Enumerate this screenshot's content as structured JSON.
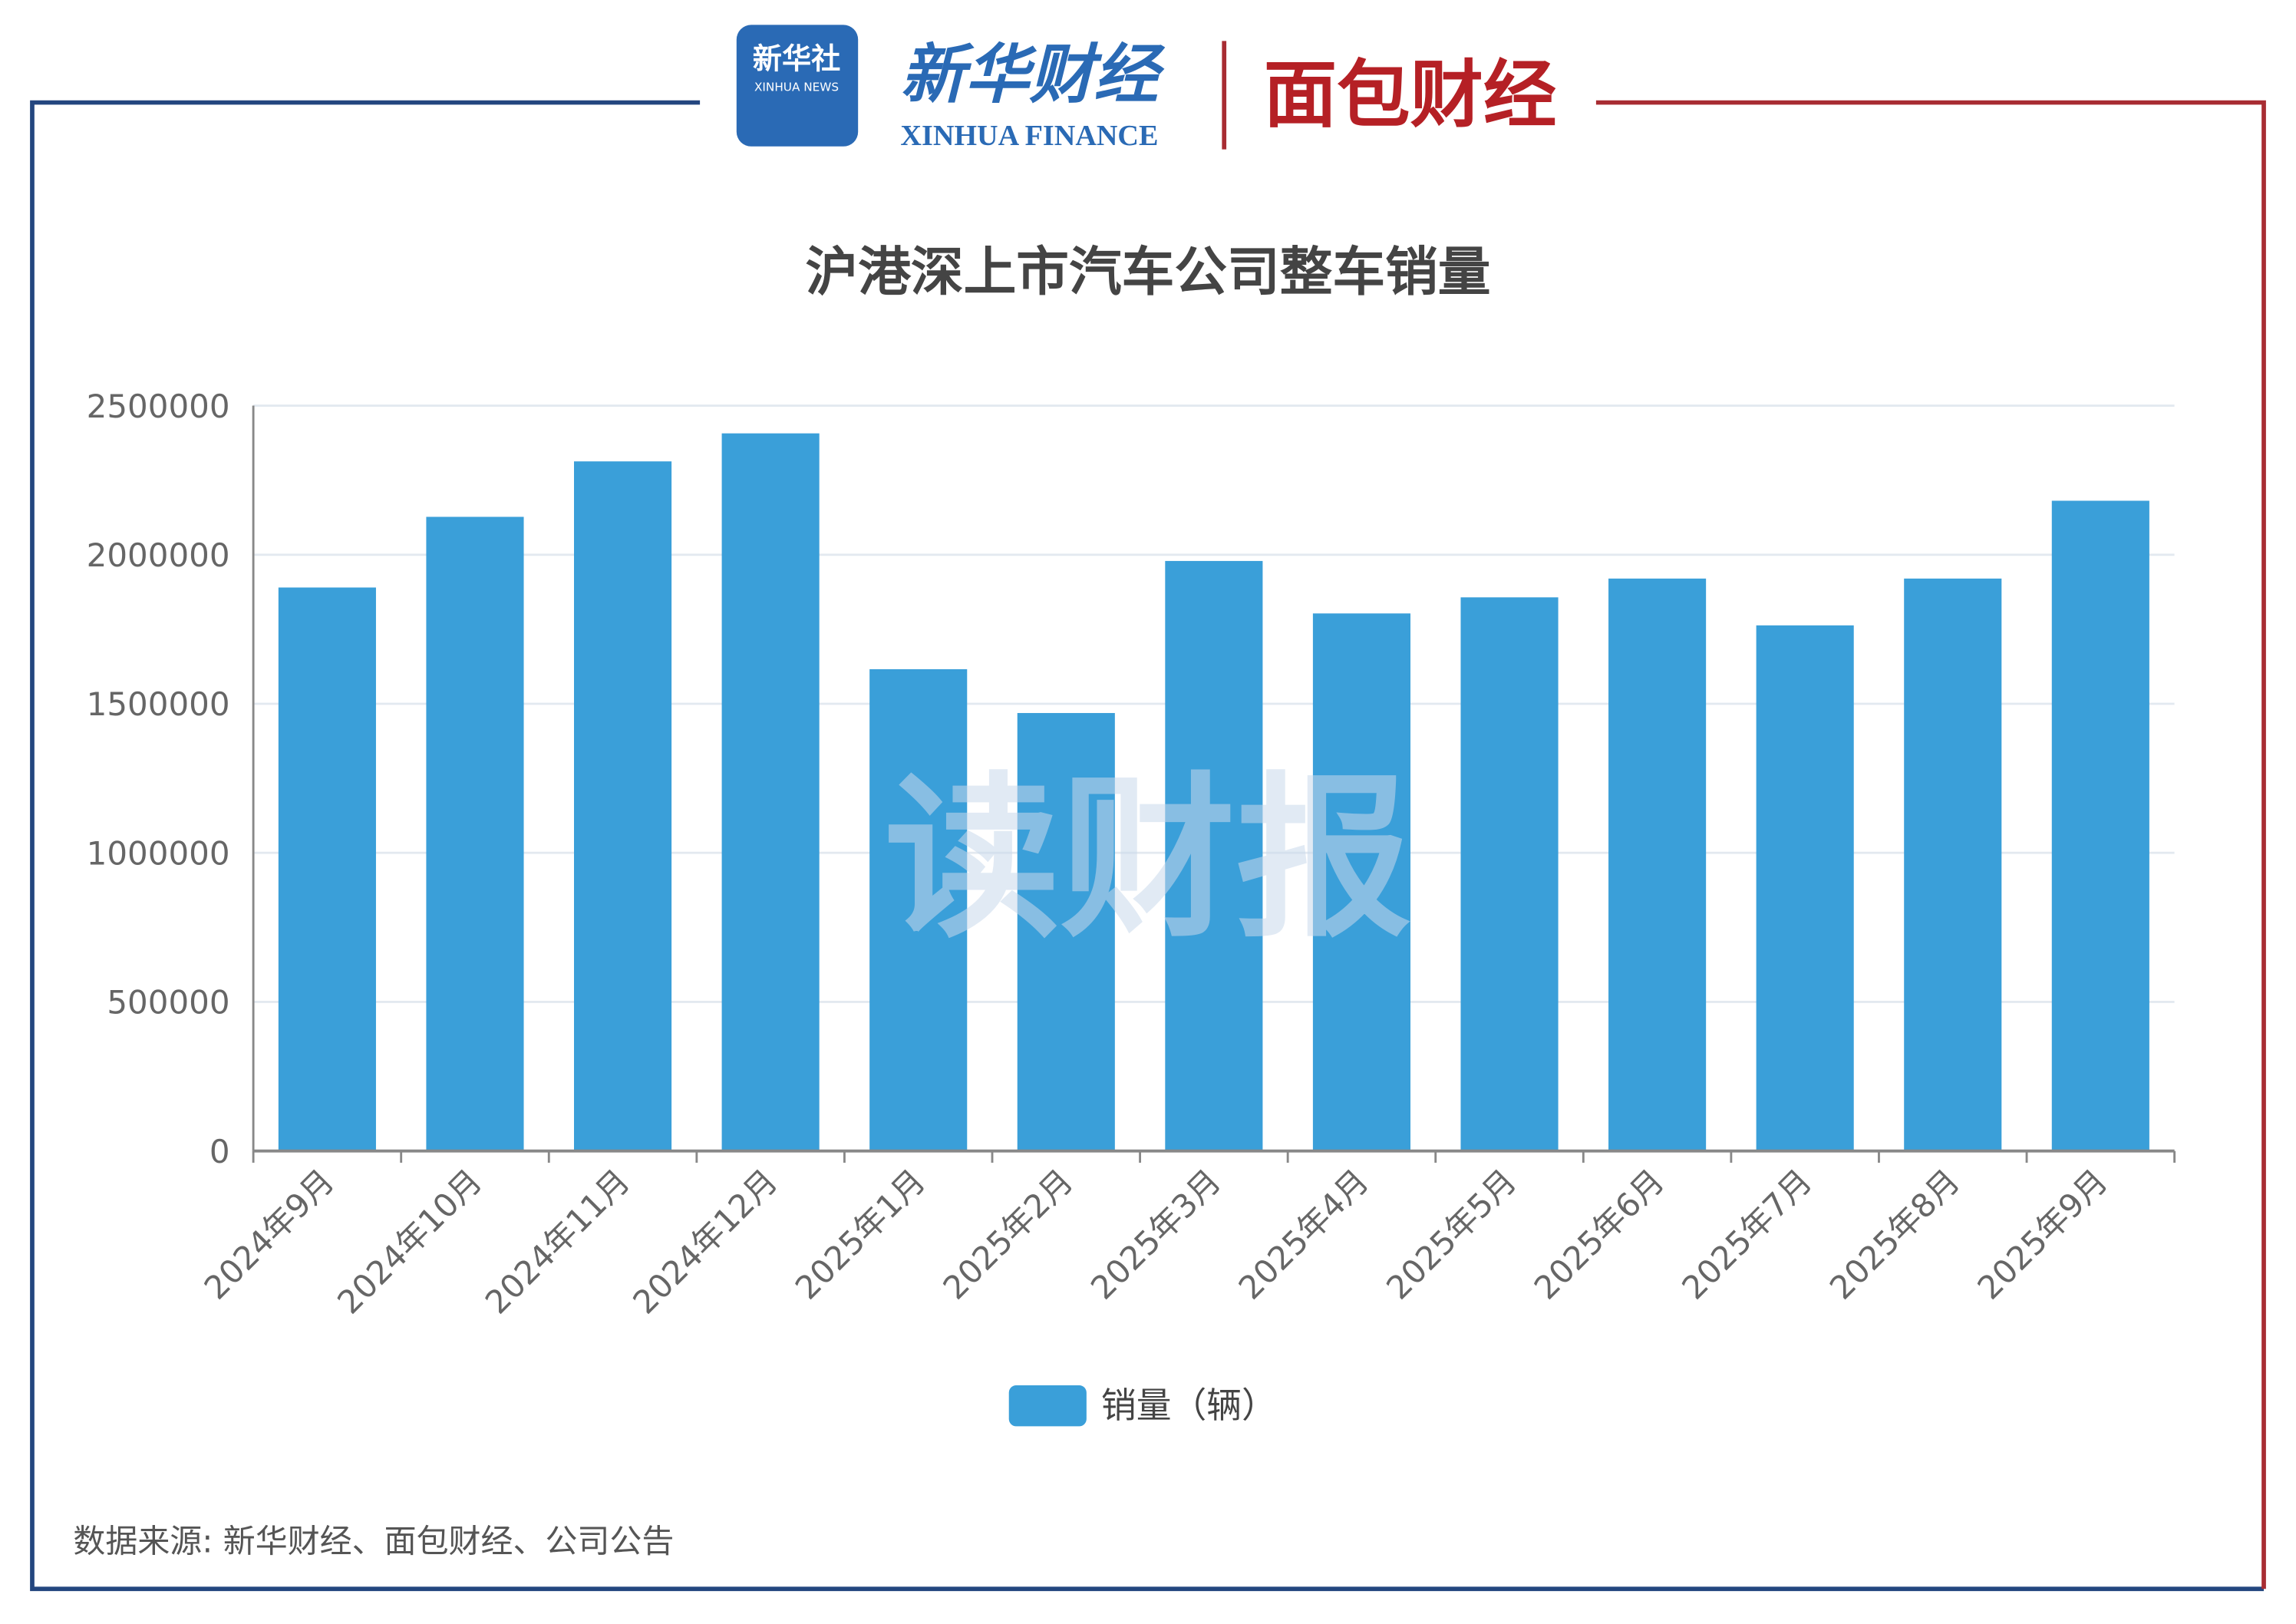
{
  "header": {
    "agency": "新华社",
    "agency_en": "XINHUA NEWS",
    "brand": "新华财经",
    "brand_en": "XINHUA FINANCE",
    "partner": "面包财经"
  },
  "watermark": "读财报",
  "source": "数据来源: 新华财经、面包财经、公司公告",
  "chart_data": {
    "type": "bar",
    "title": "沪港深上市汽车公司整车销量",
    "categories": [
      "2024年9月",
      "2024年10月",
      "2024年11月",
      "2024年12月",
      "2025年1月",
      "2025年2月",
      "2025年3月",
      "2025年4月",
      "2025年5月",
      "2025年6月",
      "2025年7月",
      "2025年8月",
      "2025年9月"
    ],
    "series": [
      {
        "name": "销量（辆）",
        "color": "#3a9fd9",
        "values": [
          1890000,
          2127000,
          2313000,
          2407000,
          1616000,
          1469000,
          1979000,
          1803000,
          1857000,
          1920000,
          1763000,
          1920000,
          2181000
        ]
      }
    ],
    "ylim": [
      0,
      2500000
    ],
    "yticks": [
      0,
      500000,
      1000000,
      1500000,
      2000000,
      2500000
    ],
    "grid": true,
    "legend": "bottom"
  }
}
